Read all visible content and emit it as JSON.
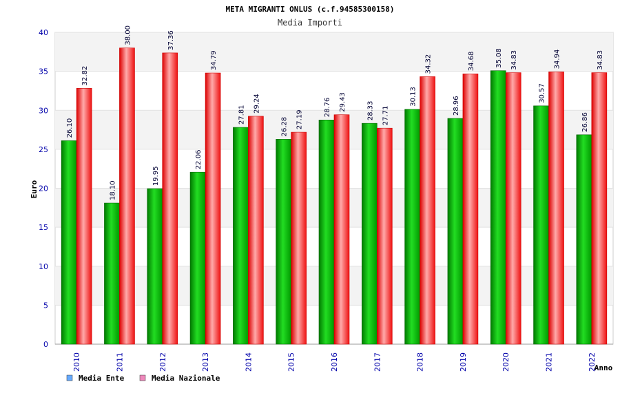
{
  "chart_data": {
    "type": "bar",
    "title": "META MIGRANTI ONLUS (c.f.94585300158)",
    "subtitle": "Media Importi",
    "xlabel": "Anno",
    "ylabel": "Euro",
    "ylim": [
      0,
      40
    ],
    "yticks": [
      0,
      5,
      10,
      15,
      20,
      25,
      30,
      35,
      40
    ],
    "grid": true,
    "legend_position": "bottom-left",
    "categories": [
      "2010",
      "2011",
      "2012",
      "2013",
      "2014",
      "2015",
      "2016",
      "2017",
      "2018",
      "2019",
      "2020",
      "2021",
      "2022"
    ],
    "series": [
      {
        "name": "Media Ente",
        "color": "#00aa00",
        "legend_color": "#66aaff",
        "values": [
          26.1,
          18.1,
          19.95,
          22.06,
          27.81,
          26.28,
          28.76,
          28.33,
          30.13,
          28.96,
          35.08,
          30.57,
          26.86
        ],
        "labels": [
          "26.10",
          "18.10",
          "19.95",
          "22.06",
          "27.81",
          "26.28",
          "28.76",
          "28.33",
          "30.13",
          "28.96",
          "35.08",
          "30.57",
          "26.86"
        ]
      },
      {
        "name": "Media Nazionale",
        "color": "#ee1111",
        "legend_color": "#ee88bb",
        "values": [
          32.82,
          38.0,
          37.36,
          34.79,
          29.24,
          27.19,
          29.43,
          27.71,
          34.32,
          34.68,
          34.83,
          34.94,
          34.83
        ],
        "labels": [
          "32.82",
          "38.00",
          "37.36",
          "34.79",
          "29.24",
          "27.19",
          "29.43",
          "27.71",
          "34.32",
          "34.68",
          "34.83",
          "34.94",
          "34.83"
        ]
      }
    ]
  }
}
